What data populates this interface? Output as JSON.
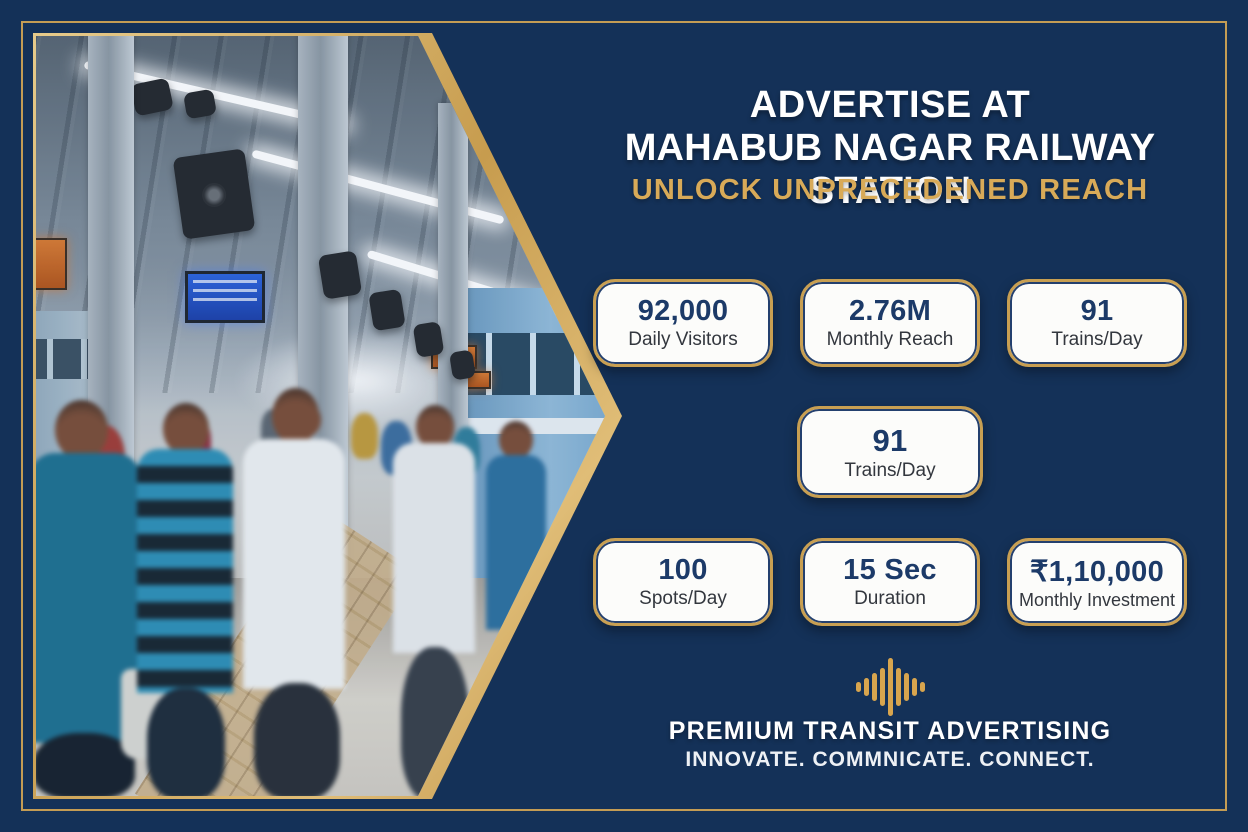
{
  "poster": {
    "title_line1": "ADVERTISE AT",
    "title_line2": "MAHABUB NAGAR RAILWAY STATION",
    "subtitle": "UNLOCK UNPRECEDENED REACH"
  },
  "stats": {
    "cards": [
      {
        "value": "92,000",
        "label": "Daily Visitors"
      },
      {
        "value": "2.76M",
        "label": "Monthly Reach"
      },
      {
        "value": "91",
        "label": "Trains/Day"
      },
      {
        "value": "91",
        "label": "Trains/Day"
      },
      {
        "value": "100",
        "label": "Spots/Day"
      },
      {
        "value": "15 Sec",
        "label": "Duration"
      },
      {
        "value": "₹1,10,000",
        "label": "Monthly Investment"
      }
    ]
  },
  "footer": {
    "brand": "PREMIUM TRANSIT ADVERTISING",
    "tagline": "INNOVATE. COMMNICATE. CONNECT.",
    "logo_icon": "sound-wave-icon"
  },
  "photo": {
    "description": "crowded railway platform with trains, pillars, speakers and signboards"
  },
  "colors": {
    "background_navy": "#143158",
    "gold": "#C89F52",
    "card_value_navy": "#1C3A68",
    "subtitle_gold": "#D8AA58",
    "white": "#FFFFFF"
  }
}
